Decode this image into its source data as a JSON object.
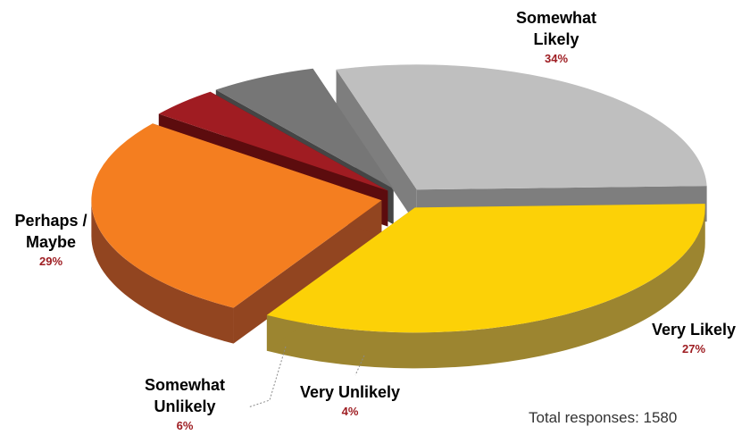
{
  "chart_data": {
    "type": "pie",
    "style": "3d-exploded",
    "categories": [
      "Somewhat Likely",
      "Very Likely",
      "Very Unlikely",
      "Somewhat Unlikely",
      "Perhaps / Maybe"
    ],
    "values": [
      34,
      27,
      4,
      6,
      29
    ],
    "units": "%",
    "slices": [
      {
        "name_lines": [
          "Somewhat",
          "Likely"
        ],
        "pct_label": "34%",
        "value": 34,
        "color": "#fcd107",
        "side_color": "#9c8530"
      },
      {
        "name_lines": [
          "Very Likely"
        ],
        "pct_label": "27%",
        "value": 27,
        "color": "#f47e20",
        "side_color": "#924520"
      },
      {
        "name_lines": [
          "Very Unlikely"
        ],
        "pct_label": "4%",
        "value": 4,
        "color": "#a01c22",
        "side_color": "#5c0c0e"
      },
      {
        "name_lines": [
          "Somewhat",
          "Unlikely"
        ],
        "pct_label": "6%",
        "value": 6,
        "color": "#767676",
        "side_color": "#454545"
      },
      {
        "name_lines": [
          "Perhaps /",
          "Maybe"
        ],
        "pct_label": "29%",
        "value": 29,
        "color": "#bfbfbf",
        "side_color": "#7e7e7e"
      }
    ],
    "legend": "none",
    "grid": false
  },
  "footer": {
    "total_text": "Total responses: 1580"
  }
}
